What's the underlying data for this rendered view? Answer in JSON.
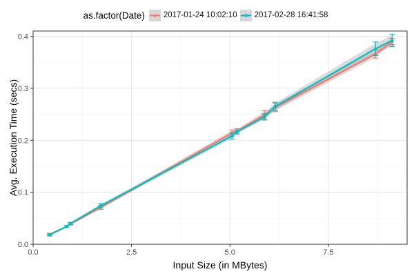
{
  "chart_data": {
    "type": "line",
    "title": "",
    "xlabel": "Input Size (in MBytes)",
    "ylabel": "Avg. Execution Time (secs)",
    "xlim": [
      0,
      9.5
    ],
    "ylim": [
      0,
      0.41
    ],
    "xticks": [
      0,
      2.5,
      5.0,
      7.5
    ],
    "xtick_labels": [
      "0.0",
      "2.5",
      "5.0",
      "7.5"
    ],
    "yticks": [
      0,
      0.1,
      0.2,
      0.3,
      0.4
    ],
    "ytick_labels": [
      "0.0",
      "0.1",
      "0.2",
      "0.3",
      "0.4"
    ],
    "grid": true,
    "legend_title": "as.factor(Date)",
    "legend_position": "top",
    "series": [
      {
        "name": "2017-01-24 10:02:10",
        "color": "#F8766D",
        "x": [
          0.42,
          0.85,
          0.95,
          1.72,
          5.05,
          5.18,
          5.88,
          6.15,
          8.7,
          9.12
        ],
        "y": [
          0.019,
          0.034,
          0.039,
          0.071,
          0.214,
          0.218,
          0.249,
          0.263,
          0.366,
          0.39
        ],
        "err": [
          0.002,
          0.002,
          0.002,
          0.004,
          0.006,
          0.004,
          0.008,
          0.008,
          0.008,
          0.006
        ]
      },
      {
        "name": "2017-02-28 16:41:58",
        "color": "#00BFC4",
        "x": [
          0.42,
          0.85,
          0.95,
          1.72,
          5.05,
          5.18,
          5.88,
          6.15,
          8.7,
          9.12
        ],
        "y": [
          0.018,
          0.034,
          0.04,
          0.074,
          0.208,
          0.216,
          0.245,
          0.265,
          0.376,
          0.392
        ],
        "err": [
          0.002,
          0.002,
          0.002,
          0.004,
          0.006,
          0.004,
          0.006,
          0.008,
          0.013,
          0.012
        ]
      }
    ]
  }
}
